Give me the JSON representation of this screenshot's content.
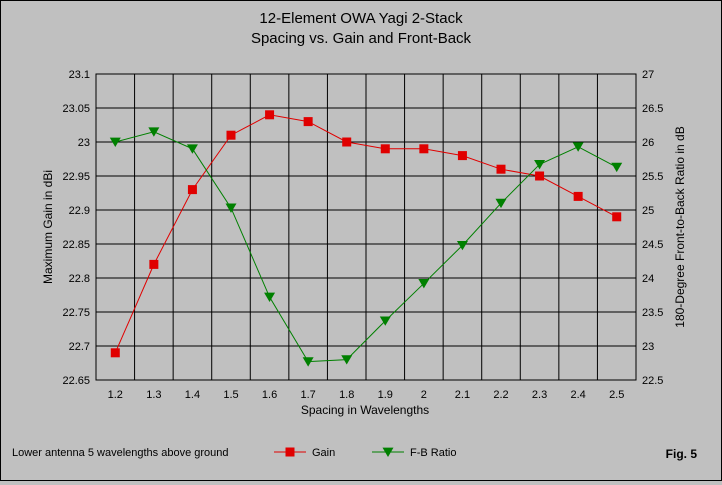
{
  "chart_data": {
    "type": "line",
    "title": "12-Element OWA Yagi 2-Stack",
    "subtitle": "Spacing vs. Gain and Front-Back",
    "xlabel": "Spacing in Wavelengths",
    "ylabel_left": "Maximum Gain in dBi",
    "ylabel_right": "180-Degree Front-to-Back Ratio in dB",
    "x": [
      1.2,
      1.3,
      1.4,
      1.5,
      1.6,
      1.7,
      1.8,
      1.9,
      2.0,
      2.1,
      2.2,
      2.3,
      2.4,
      2.5
    ],
    "x_tick_labels": [
      "1.2",
      "1.3",
      "1.4",
      "1.5",
      "1.6",
      "1.7",
      "1.8",
      "1.9",
      "2",
      "2.1",
      "2.2",
      "2.3",
      "2.4",
      "2.5"
    ],
    "ylim_left": [
      22.65,
      23.1
    ],
    "y_left_ticks": [
      "23.1",
      "23.05",
      "23",
      "22.95",
      "22.9",
      "22.85",
      "22.8",
      "22.75",
      "22.7",
      "22.65"
    ],
    "ylim_right": [
      22.5,
      27
    ],
    "y_right_ticks": [
      "27",
      "26.5",
      "26",
      "25.5",
      "25",
      "24.5",
      "24",
      "23.5",
      "23",
      "22.5"
    ],
    "grid": true,
    "legend_position": "bottom",
    "series": [
      {
        "name": "Gain",
        "axis": "left",
        "color": "#e00000",
        "marker": "square",
        "values": [
          22.69,
          22.82,
          22.93,
          23.01,
          23.04,
          23.03,
          23.0,
          22.99,
          22.99,
          22.98,
          22.96,
          22.95,
          22.92,
          22.89
        ]
      },
      {
        "name": "F-B Ratio",
        "axis": "right",
        "color": "#008000",
        "marker": "triangle-down",
        "values": [
          26.0,
          26.15,
          25.9,
          25.03,
          23.72,
          22.77,
          22.8,
          23.37,
          23.92,
          24.48,
          25.1,
          25.67,
          25.93,
          25.63
        ]
      }
    ],
    "annotation_left": "Lower antenna 5 wavelengths above ground",
    "annotation_right": "Fig. 5"
  }
}
